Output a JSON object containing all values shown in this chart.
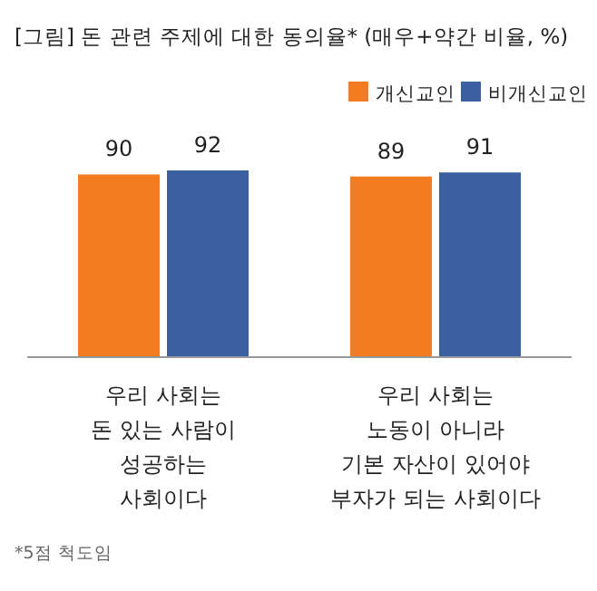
{
  "chart_data": {
    "type": "bar",
    "title": "[그림] 돈 관련 주제에 대한 동의율* (매우+약간 비율, %)",
    "categories": [
      "우리 사회는\n돈 있는 사람이\n성공하는\n사회이다",
      "우리 사회는\n노동이 아니라\n기본 자산이 있어야\n부자가 되는 사회이다"
    ],
    "series": [
      {
        "name": "개신교인",
        "color": "#f47c20",
        "values": [
          90,
          89
        ]
      },
      {
        "name": "비개신교인",
        "color": "#3b5fa0",
        "values": [
          92,
          91
        ]
      }
    ],
    "data_labels": true,
    "legend": "top right",
    "grid": false,
    "annotations": [
      "*5점 척도임"
    ]
  }
}
